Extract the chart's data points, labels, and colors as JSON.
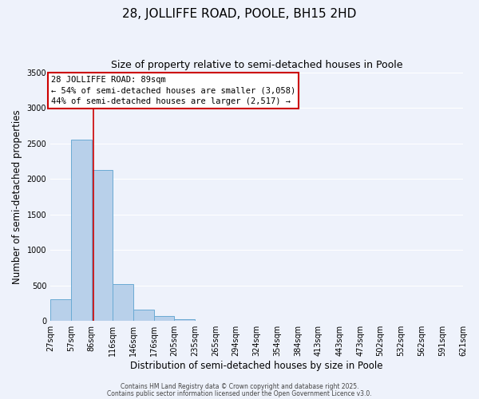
{
  "title": "28, JOLLIFFE ROAD, POOLE, BH15 2HD",
  "subtitle": "Size of property relative to semi-detached houses in Poole",
  "xlabel": "Distribution of semi-detached houses by size in Poole",
  "ylabel": "Number of semi-detached properties",
  "bar_color": "#b8d0ea",
  "bar_edge_color": "#6aaad4",
  "background_color": "#eef2fb",
  "grid_color": "#ffffff",
  "annotation_box_color": "#cc0000",
  "vline_color": "#cc0000",
  "annotation_title": "28 JOLLIFFE ROAD: 89sqm",
  "annotation_line1": "← 54% of semi-detached houses are smaller (3,058)",
  "annotation_line2": "44% of semi-detached houses are larger (2,517) →",
  "property_size": 89,
  "bins": [
    27,
    57,
    86,
    116,
    146,
    176,
    205,
    235,
    265,
    294,
    324,
    354,
    384,
    413,
    443,
    473,
    502,
    532,
    562,
    591,
    621
  ],
  "counts": [
    300,
    2550,
    2130,
    520,
    160,
    70,
    20,
    5,
    2,
    0,
    0,
    0,
    0,
    0,
    0,
    0,
    0,
    0,
    0,
    0
  ],
  "ylim": [
    0,
    3500
  ],
  "yticks": [
    0,
    500,
    1000,
    1500,
    2000,
    2500,
    3000,
    3500
  ],
  "tick_labels": [
    "27sqm",
    "57sqm",
    "86sqm",
    "116sqm",
    "146sqm",
    "176sqm",
    "205sqm",
    "235sqm",
    "265sqm",
    "294sqm",
    "324sqm",
    "354sqm",
    "384sqm",
    "413sqm",
    "443sqm",
    "473sqm",
    "502sqm",
    "532sqm",
    "562sqm",
    "591sqm",
    "621sqm"
  ],
  "footer_line1": "Contains HM Land Registry data © Crown copyright and database right 2025.",
  "footer_line2": "Contains public sector information licensed under the Open Government Licence v3.0.",
  "title_fontsize": 11,
  "subtitle_fontsize": 9,
  "axis_label_fontsize": 8.5,
  "tick_fontsize": 7,
  "annotation_fontsize": 7.5,
  "footer_fontsize": 5.5
}
